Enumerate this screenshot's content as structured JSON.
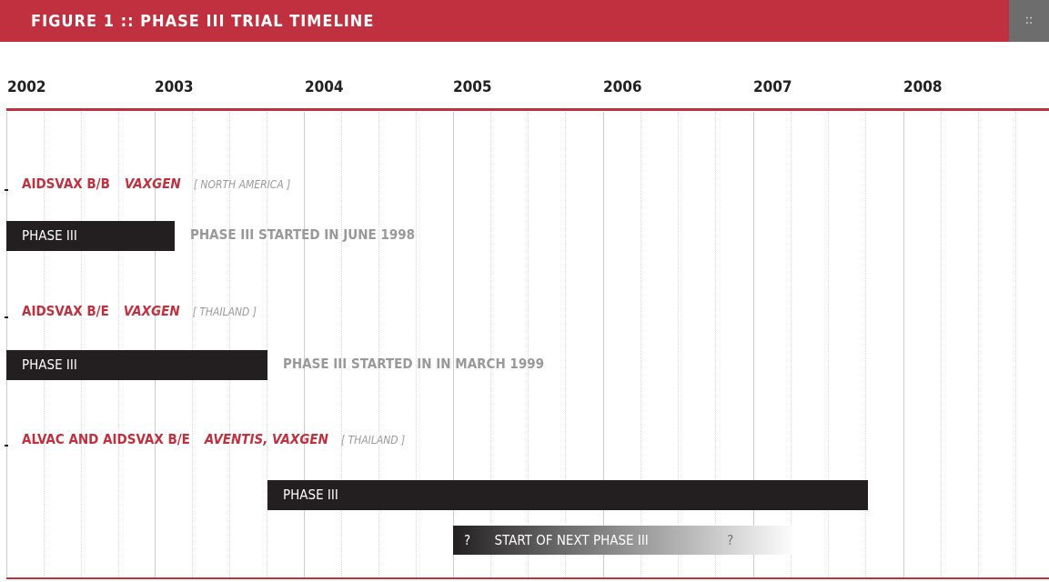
{
  "header": {
    "title": "FIGURE 1 :: PHASE III TRIAL TIMELINE",
    "menu": "::"
  },
  "years": [
    "2002",
    "2003",
    "2004",
    "2005",
    "2006",
    "2007",
    "2008"
  ],
  "trials": [
    {
      "name": "AIDSVAX B/B",
      "sponsor": "VAXGEN",
      "region": "[ NORTH AMERICA ]",
      "bar": "PHASE III",
      "note": "PHASE III STARTED IN JUNE 1998"
    },
    {
      "name": "AIDSVAX B/E",
      "sponsor": "VAXGEN",
      "region": "[ THAILAND ]",
      "bar": "PHASE III",
      "note": "PHASE III STARTED IN IN MARCH 1999"
    },
    {
      "name": "ALVAC AND AIDSVAX B/E",
      "sponsor": "AVENTIS, VAXGEN",
      "region": "[ THAILAND ]",
      "bar": "PHASE III"
    }
  ],
  "next_phase": {
    "start": "?",
    "label": "START OF NEXT PHASE III",
    "end": "?"
  }
}
